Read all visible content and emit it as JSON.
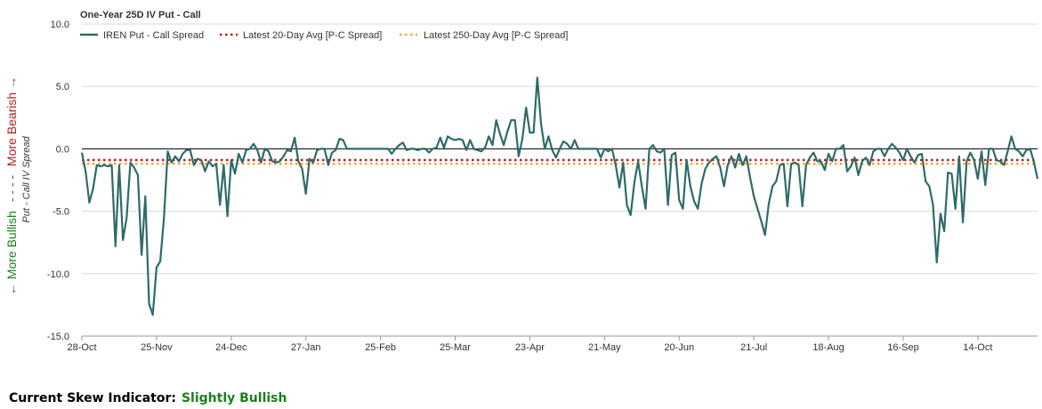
{
  "footer": {
    "label": "Current Skew Indicator:",
    "value": "Slightly Bullish",
    "value_color": "#1a7f1a"
  },
  "side_labels": {
    "bullish": "← More Bullish",
    "dashes": "- - - -",
    "bearish": "More Bearish →",
    "bullish_color": "#1a7f1a",
    "bearish_color": "#b22222"
  },
  "chart_data": {
    "type": "line",
    "title": "One-Year 25D IV Put - Call",
    "ylabel": "Put - Call IV Spread",
    "xlabel": "",
    "ylim": [
      -15,
      10
    ],
    "yticks": [
      "10.0",
      "5.0",
      "0.0",
      "-5.0",
      "-10.0",
      "-15.0"
    ],
    "ytick_values": [
      10,
      5,
      0,
      -5,
      -10,
      -15
    ],
    "xtick_labels": [
      "28-Oct",
      "25-Nov",
      "24-Dec",
      "27-Jan",
      "25-Feb",
      "25-Mar",
      "23-Apr",
      "21-May",
      "20-Jun",
      "21-Jul",
      "18-Aug",
      "16-Sep",
      "14-Oct"
    ],
    "xtick_index": [
      0,
      20,
      40,
      60,
      80,
      100,
      120,
      140,
      160,
      180,
      200,
      220,
      240
    ],
    "series": [
      {
        "name": "IREN Put - Call Spread",
        "color": "#2e6b68",
        "style": "solid",
        "values": [
          -0.3,
          -1.8,
          -4.3,
          -3.2,
          -1.3,
          -1.4,
          -1.3,
          -1.4,
          -1.3,
          -7.8,
          -1.3,
          -7.3,
          -5.5,
          -1.1,
          -1.5,
          -2.1,
          -8.5,
          -3.8,
          -12.4,
          -13.3,
          -9.5,
          -9.0,
          -5.5,
          -0.2,
          -1.1,
          -0.6,
          -1.0,
          -0.4,
          -0.1,
          -0.1,
          -1.3,
          -0.8,
          -0.9,
          -1.8,
          -1.0,
          -1.4,
          -1.2,
          -4.5,
          -1.3,
          -5.4,
          -0.9,
          -2.0,
          -0.4,
          -1.1,
          -0.1,
          0.0,
          0.4,
          -0.1,
          -1.1,
          0.0,
          -0.2,
          -1.0,
          -1.1,
          -1.0,
          -0.6,
          -0.1,
          -0.2,
          0.9,
          -1.0,
          -1.6,
          -3.6,
          -0.8,
          -1.1,
          -0.1,
          0.0,
          0.0,
          -1.3,
          -0.3,
          -0.1,
          0.8,
          0.7,
          0.0,
          0.0,
          0.0,
          0.0,
          0.0,
          0.0,
          0.0,
          0.0,
          0.0,
          0.0,
          0.0,
          0.0,
          -0.4,
          0.0,
          0.3,
          0.5,
          -0.1,
          0.0,
          0.0,
          -0.1,
          0.0,
          0.0,
          -0.3,
          0.0,
          0.1,
          0.9,
          0.1,
          1.0,
          0.8,
          0.7,
          0.8,
          0.7,
          -0.1,
          0.7,
          0.0,
          -0.1,
          -0.2,
          0.1,
          1.0,
          0.3,
          2.3,
          1.2,
          0.3,
          1.4,
          2.3,
          2.3,
          -0.6,
          0.8,
          3.3,
          1.3,
          1.3,
          5.7,
          2.0,
          0.0,
          1.0,
          -0.1,
          -0.7,
          0.0,
          0.6,
          0.4,
          0.0,
          0.7,
          0.0,
          0.0,
          0.0,
          0.0,
          0.0,
          0.0,
          -0.7,
          0.0,
          -0.2,
          0.0,
          -1.3,
          -3.1,
          -1.1,
          -4.5,
          -5.3,
          -2.7,
          -1.0,
          -3.0,
          -4.8,
          0.0,
          0.3,
          -0.2,
          -0.3,
          0.0,
          -4.5,
          -0.5,
          -0.3,
          -4.1,
          -4.8,
          -0.9,
          -3.0,
          -4.2,
          -4.8,
          -2.8,
          -1.6,
          -1.1,
          -0.8,
          -0.6,
          -1.5,
          -3.0,
          -1.3,
          -0.6,
          -1.5,
          -0.4,
          -1.3,
          -0.6,
          -2.3,
          -3.8,
          -4.8,
          -5.8,
          -6.9,
          -4.4,
          -3.0,
          -2.6,
          -1.3,
          -1.2,
          -4.6,
          -1.2,
          -1.1,
          -1.3,
          -4.6,
          -1.3,
          -0.7,
          -0.3,
          -1.0,
          -1.0,
          -1.7,
          -0.4,
          -1.0,
          0.0,
          0.0,
          0.3,
          -1.8,
          -1.4,
          -0.7,
          -2.1,
          -1.0,
          -0.7,
          -1.3,
          -0.2,
          0.0,
          0.0,
          -0.6,
          0.0,
          0.4,
          0.1,
          -0.3,
          -0.9,
          0.0,
          -0.6,
          -1.1,
          -0.5,
          -0.4,
          -2.6,
          -3.0,
          -4.5,
          -9.1,
          -5.2,
          -6.6,
          -1.9,
          -2.0,
          -4.8,
          -0.6,
          -5.9,
          -1.0,
          -0.3,
          -0.9,
          -2.4,
          -0.2,
          -2.9,
          0.0,
          0.0,
          -0.9,
          -1.0,
          -1.3,
          -0.2,
          1.0,
          0.0,
          -0.2,
          -0.6,
          -0.1,
          0.0,
          -1.0,
          -2.4
        ]
      },
      {
        "name": "Latest 20-Day Avg [P-C Spread]",
        "color": "#b51c1c",
        "style": "dotted",
        "value": -0.9
      },
      {
        "name": "Latest 250-Day Avg [P-C Spread]",
        "color": "#f0a830",
        "style": "dotted",
        "value": -1.2
      }
    ],
    "zero_line_color": "#000000",
    "grid": true,
    "legend_position": "top-left"
  }
}
